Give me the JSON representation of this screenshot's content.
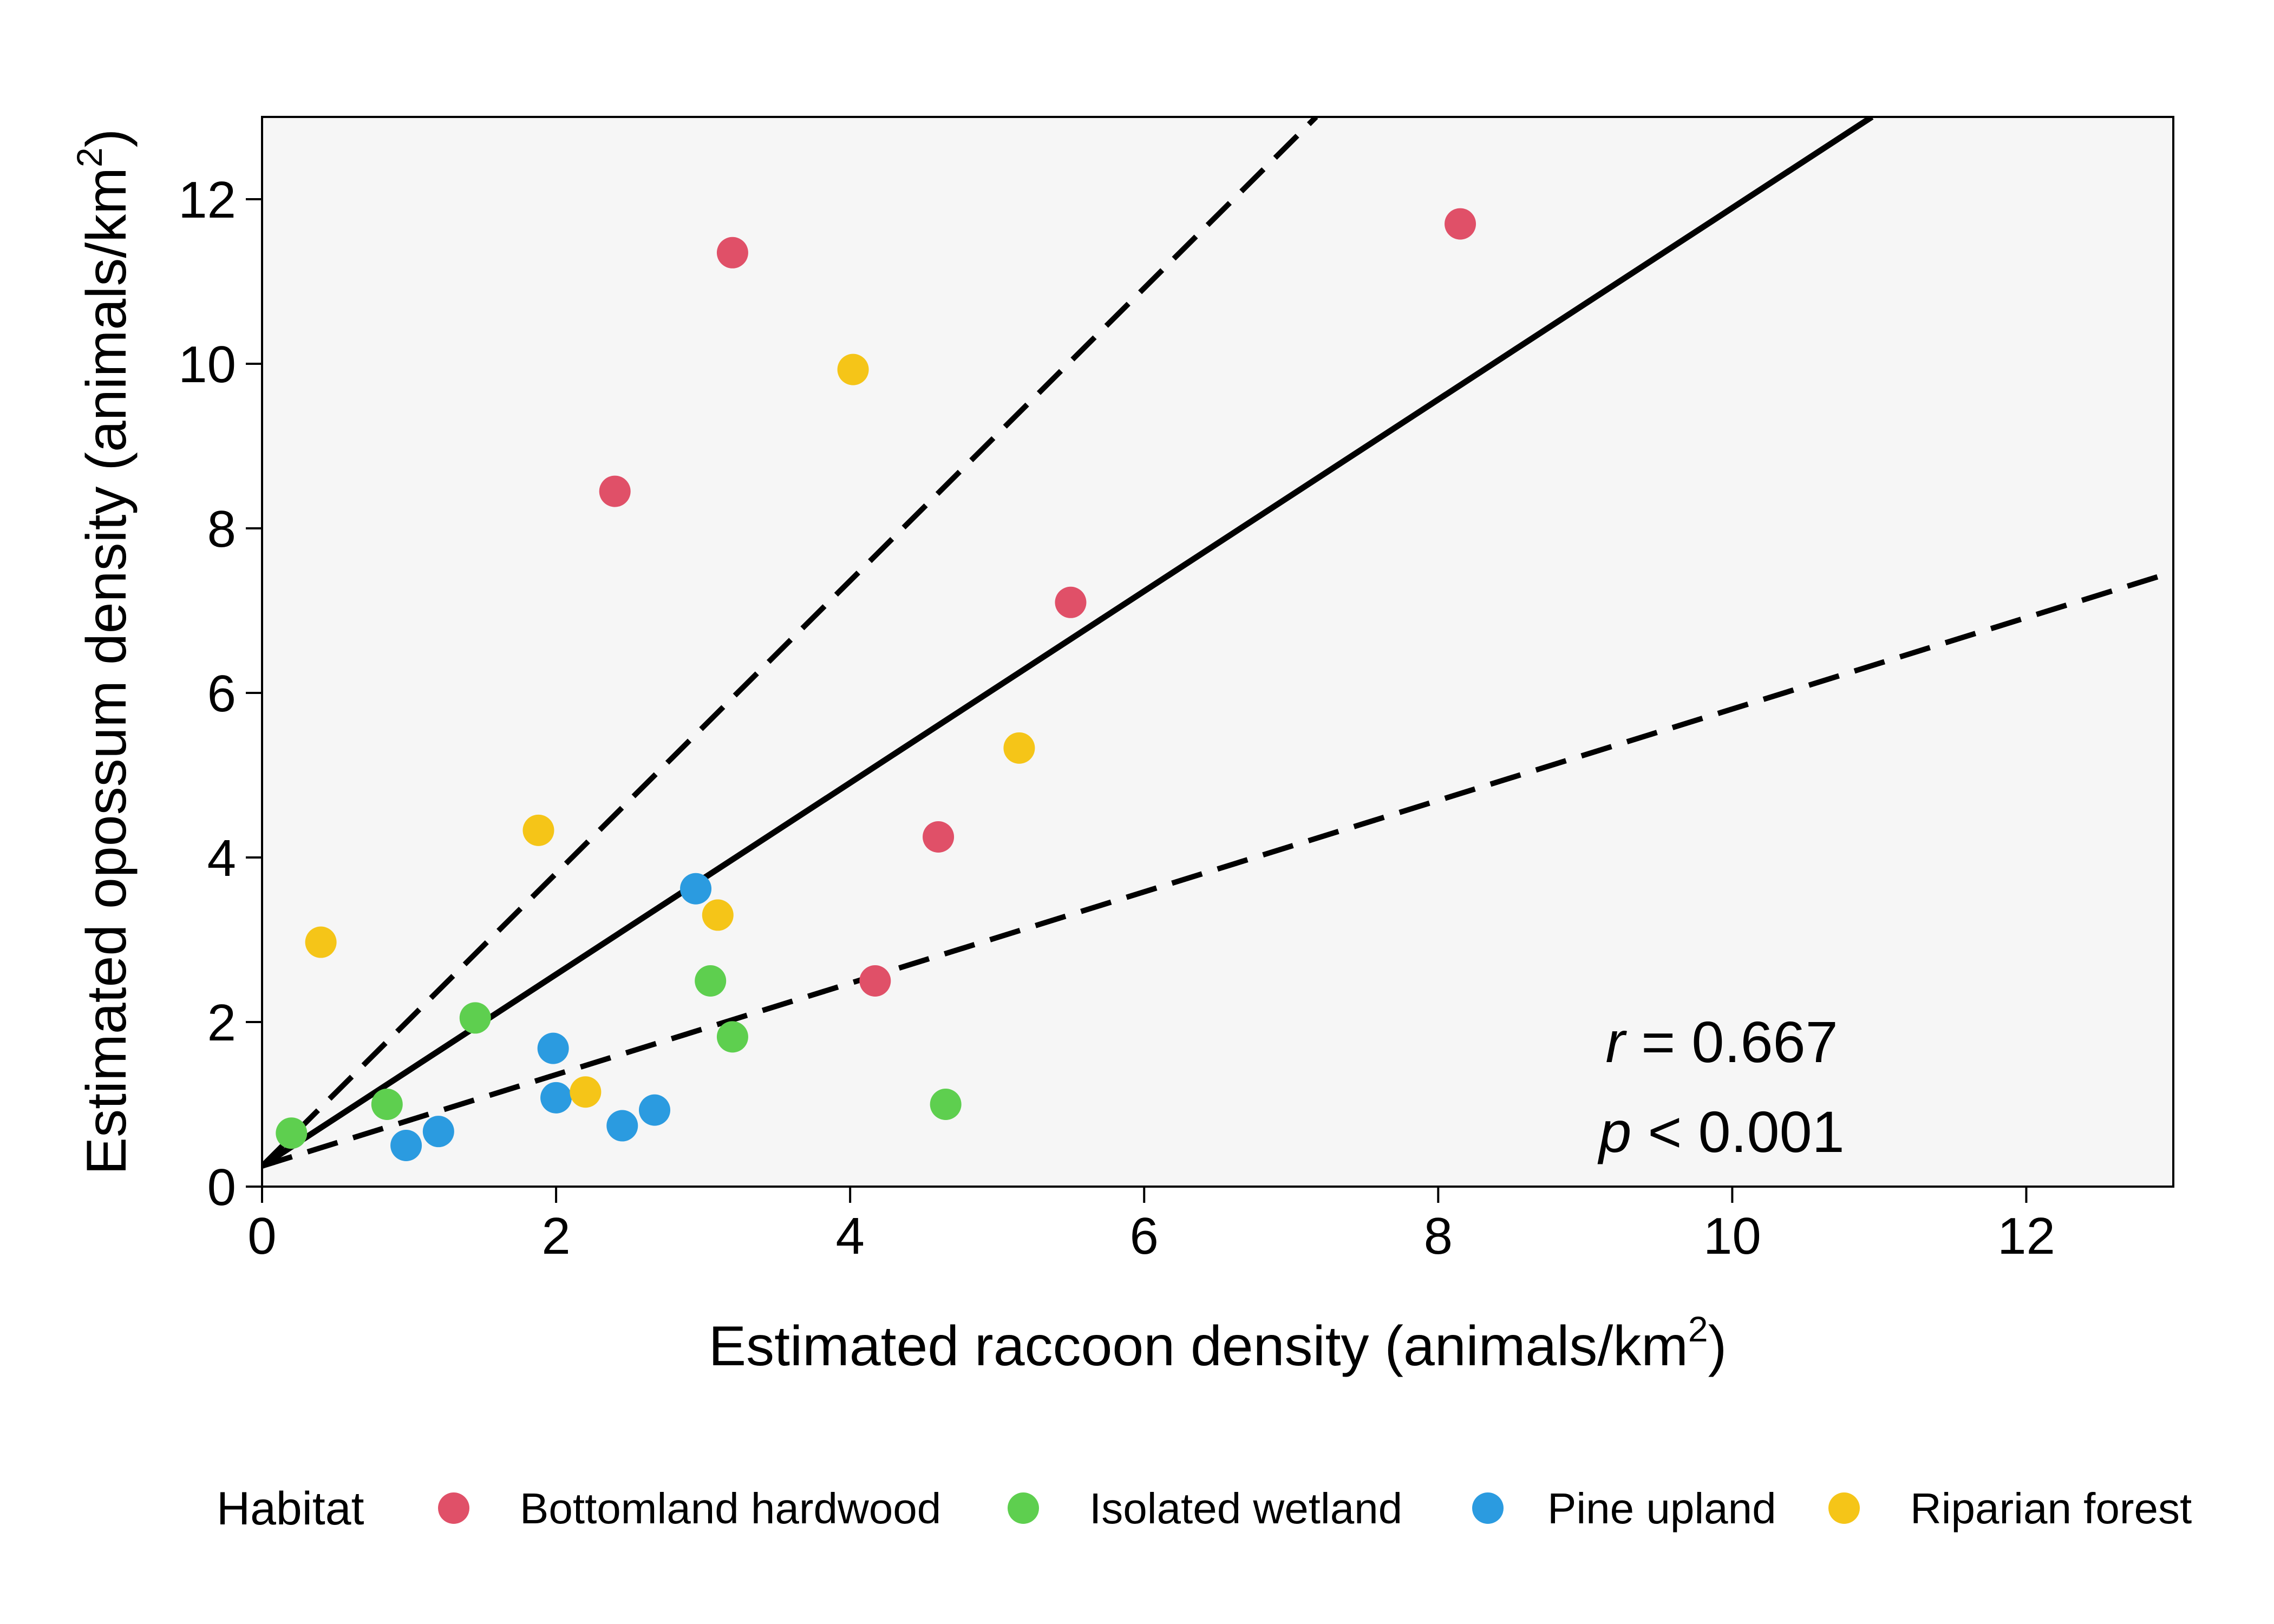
{
  "chart_data": {
    "type": "scatter",
    "xlabel": "Estimated raccoon density (animals/km",
    "xlabel_sup": "2",
    "xlabel_end": ")",
    "ylabel": "Estimated opossum density  (animals/km",
    "ylabel_sup": "2",
    "ylabel_end": ")",
    "xlim": [
      0,
      13
    ],
    "ylim": [
      0,
      13
    ],
    "x_ticks": [
      0,
      2,
      4,
      6,
      8,
      10,
      12
    ],
    "y_ticks": [
      0,
      2,
      4,
      6,
      8,
      10,
      12
    ],
    "panel_background": "#f6f6f6",
    "grid": false,
    "legend": {
      "title": "Habitat",
      "position": "bottom"
    },
    "series": [
      {
        "name": "Bottomland hardwood",
        "color": "#e05068",
        "points": [
          {
            "x": 8.15,
            "y": 11.7
          },
          {
            "x": 3.2,
            "y": 11.35
          },
          {
            "x": 2.4,
            "y": 8.45
          },
          {
            "x": 5.5,
            "y": 7.1
          },
          {
            "x": 4.6,
            "y": 4.25
          },
          {
            "x": 4.17,
            "y": 2.5
          }
        ]
      },
      {
        "name": "Isolated wetland",
        "color": "#5ecf4f",
        "points": [
          {
            "x": 0.2,
            "y": 0.65
          },
          {
            "x": 0.85,
            "y": 1.0
          },
          {
            "x": 1.45,
            "y": 2.05
          },
          {
            "x": 3.05,
            "y": 2.5
          },
          {
            "x": 3.2,
            "y": 1.82
          },
          {
            "x": 4.65,
            "y": 1.0
          }
        ]
      },
      {
        "name": "Pine upland",
        "color": "#2b9be0",
        "points": [
          {
            "x": 0.98,
            "y": 0.5
          },
          {
            "x": 1.2,
            "y": 0.67
          },
          {
            "x": 1.98,
            "y": 1.68
          },
          {
            "x": 2.0,
            "y": 1.08
          },
          {
            "x": 2.45,
            "y": 0.74
          },
          {
            "x": 2.67,
            "y": 0.93
          },
          {
            "x": 2.95,
            "y": 3.62
          }
        ]
      },
      {
        "name": "Riparian forest",
        "color": "#f5c518",
        "points": [
          {
            "x": 0.4,
            "y": 2.97
          },
          {
            "x": 1.88,
            "y": 4.33
          },
          {
            "x": 2.2,
            "y": 1.15
          },
          {
            "x": 3.1,
            "y": 3.3
          },
          {
            "x": 4.02,
            "y": 9.93
          },
          {
            "x": 5.15,
            "y": 5.33
          }
        ]
      }
    ],
    "fit_lines": [
      {
        "role": "fit",
        "style": "solid",
        "x1": 0,
        "y1": 0.25,
        "x2": 10.95,
        "y2": 13.0
      },
      {
        "role": "upper bound",
        "style": "dashed",
        "x1": 0,
        "y1": 0.25,
        "x2": 7.17,
        "y2": 13.0
      },
      {
        "role": "lower bound",
        "style": "dashed",
        "x1": 0,
        "y1": 0.25,
        "x2": 13.0,
        "y2": 7.47
      }
    ],
    "annotations": {
      "r_symbol": "r",
      "r_value": " = 0.667",
      "p_symbol": "p",
      "p_value": " < 0.001"
    }
  }
}
